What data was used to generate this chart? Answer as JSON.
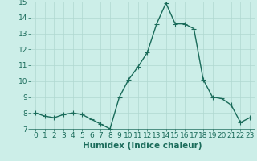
{
  "x": [
    0,
    1,
    2,
    3,
    4,
    5,
    6,
    7,
    8,
    9,
    10,
    11,
    12,
    13,
    14,
    15,
    16,
    17,
    18,
    19,
    20,
    21,
    22,
    23
  ],
  "y": [
    8.0,
    7.8,
    7.7,
    7.9,
    8.0,
    7.9,
    7.6,
    7.3,
    7.0,
    9.0,
    10.1,
    10.9,
    11.8,
    13.6,
    14.9,
    13.6,
    13.6,
    13.3,
    10.1,
    9.0,
    8.9,
    8.5,
    7.4,
    7.7
  ],
  "line_color": "#1a6b5a",
  "marker": "D",
  "markersize": 2.0,
  "linewidth": 1.0,
  "bg_color": "#cceee8",
  "grid_color": "#b0d8d0",
  "xlabel": "Humidex (Indice chaleur)",
  "xlim": [
    -0.5,
    23.5
  ],
  "ylim": [
    7,
    15
  ],
  "yticks": [
    7,
    8,
    9,
    10,
    11,
    12,
    13,
    14,
    15
  ],
  "xticks": [
    0,
    1,
    2,
    3,
    4,
    5,
    6,
    7,
    8,
    9,
    10,
    11,
    12,
    13,
    14,
    15,
    16,
    17,
    18,
    19,
    20,
    21,
    22,
    23
  ],
  "tick_color": "#1a6b5a",
  "label_color": "#1a6b5a",
  "font_size": 6.5,
  "xlabel_fontsize": 7.5
}
